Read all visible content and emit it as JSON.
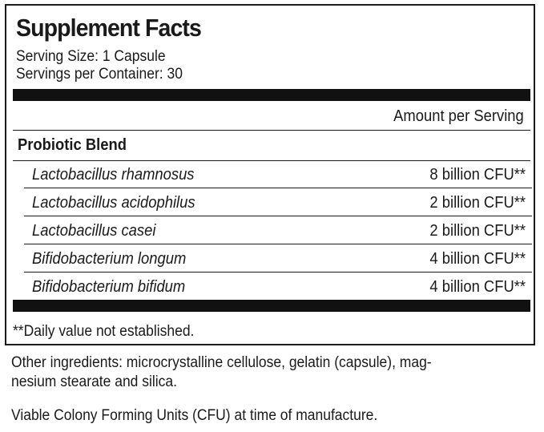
{
  "label": {
    "title": "Supplement Facts",
    "serving_size": "Serving Size: 1 Capsule",
    "servings_per_container": "Servings per Container: 30",
    "amount_header": "Amount per Serving",
    "blend_name": "Probiotic Blend",
    "ingredients": [
      {
        "name": "Lactobacillus rhamnosus",
        "amount": "8 billion CFU**"
      },
      {
        "name": "Lactobacillus acidophilus",
        "amount": "2 billion CFU**"
      },
      {
        "name": "Lactobacillus casei",
        "amount": "2 billion CFU**"
      },
      {
        "name": "Bifidobacterium longum",
        "amount": "4 billion CFU**"
      },
      {
        "name": "Bifidobacterium bifidum",
        "amount": "4 billion CFU**"
      }
    ],
    "footnote": "**Daily value not established."
  },
  "other_ingredients": {
    "line1": "Other ingredients: microcrystalline cellulose, gelatin (capsule), mag-",
    "line2": "nesium stearate and silica."
  },
  "cfu_note": "Viable Colony Forming Units (CFU) at time of manufacture."
}
